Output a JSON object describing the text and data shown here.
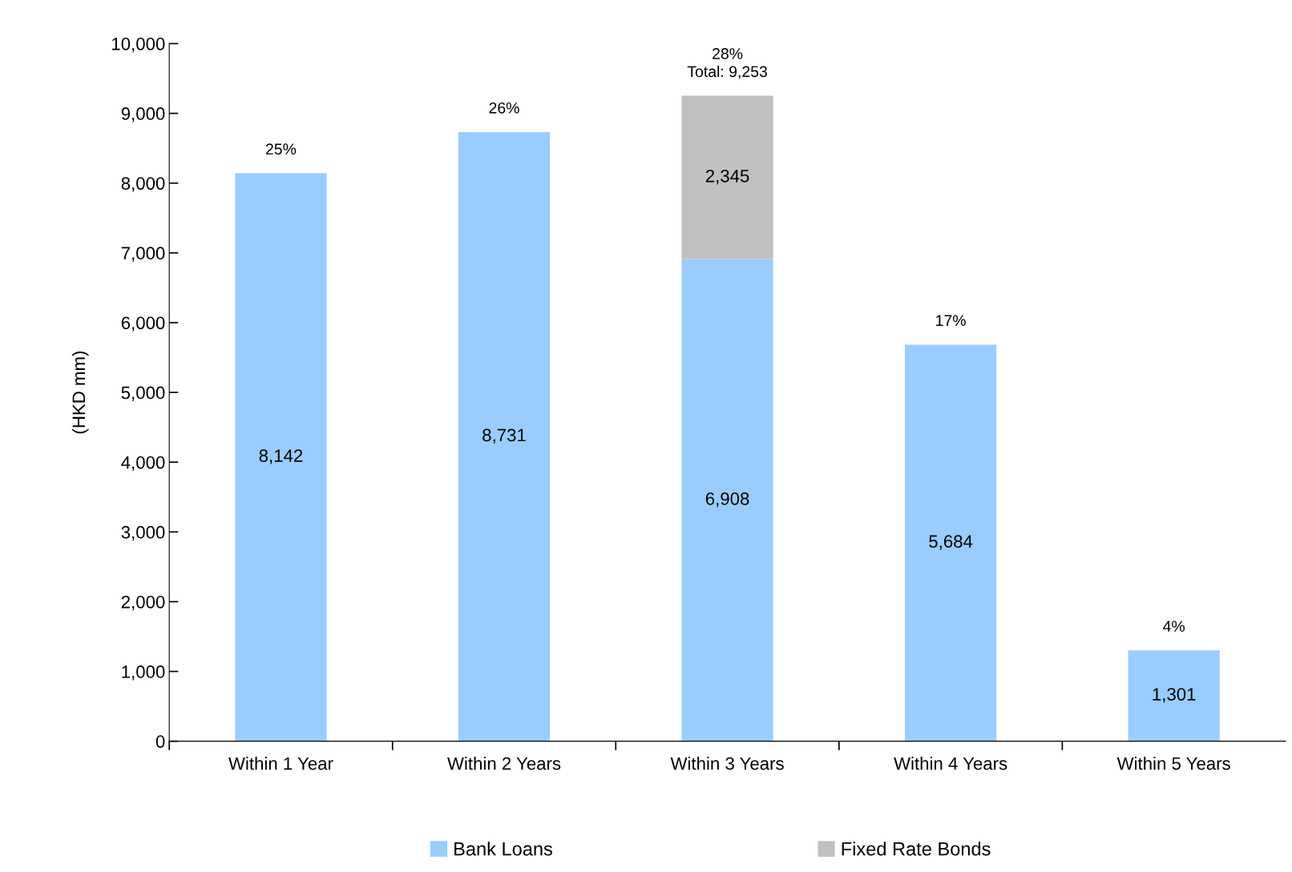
{
  "chart_data": {
    "type": "bar",
    "stacked": true,
    "ylabel": "(HKD mm)",
    "categories": [
      "Within 1 Year",
      "Within 2 Years",
      "Within 3 Years",
      "Within 4 Years",
      "Within 5 Years"
    ],
    "series": [
      {
        "name": "Bank Loans",
        "color": "#99ccff",
        "values": [
          8142,
          8731,
          6908,
          5684,
          1301
        ],
        "value_labels": [
          "8,142",
          "8,731",
          "6,908",
          "5,684",
          "1,301"
        ]
      },
      {
        "name": "Fixed Rate Bonds",
        "color": "#c0c0c0",
        "values": [
          null,
          null,
          2345,
          null,
          null
        ],
        "value_labels": [
          null,
          null,
          "2,345",
          null,
          null
        ]
      }
    ],
    "ylim": [
      0,
      10000
    ],
    "yticks": [
      0,
      {
        "value": 1000,
        "label": "1,000"
      },
      {
        "value": 2000,
        "label": "2,000"
      },
      {
        "value": 3000,
        "label": "3,000"
      },
      {
        "value": 4000,
        "label": "4,000"
      },
      {
        "value": 5000,
        "label": "5,000"
      },
      {
        "value": 6000,
        "label": "6,000"
      },
      {
        "value": 7000,
        "label": "7,000"
      },
      {
        "value": 8000,
        "label": "8,000"
      },
      {
        "value": 9000,
        "label": "9,000"
      },
      {
        "value": 10000,
        "label": "10,000"
      }
    ],
    "annotations": [
      {
        "text": "25%",
        "x": "Within 1 Year",
        "y": 8142
      },
      {
        "text": "26%",
        "x": "Within 2 Years",
        "y": 8731
      },
      {
        "text": "28%\nTotal: 9,253",
        "x": "Within 3 Years",
        "y": 9253
      },
      {
        "text": "17%",
        "x": "Within 4 Years",
        "y": 5684
      },
      {
        "text": "4%",
        "x": "Within 5 Years",
        "y": 1301
      }
    ],
    "grid": false,
    "legend": "bottom"
  }
}
